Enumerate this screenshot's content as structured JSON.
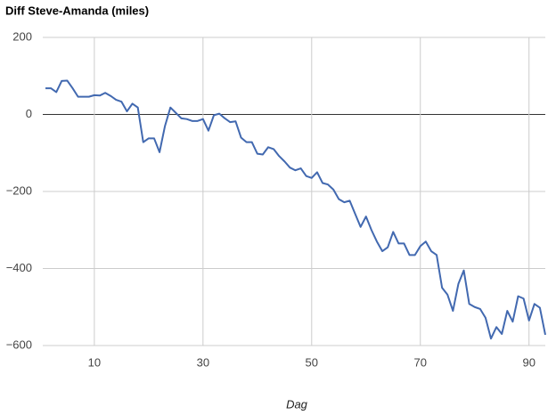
{
  "chart_data": {
    "type": "line",
    "title": "Diff Steve-Amanda (miles)",
    "x_label": "Dag",
    "x": [
      1,
      2,
      3,
      4,
      5,
      6,
      7,
      8,
      9,
      10,
      11,
      12,
      13,
      14,
      15,
      16,
      17,
      18,
      19,
      20,
      21,
      22,
      23,
      24,
      25,
      26,
      27,
      28,
      29,
      30,
      31,
      32,
      33,
      34,
      35,
      36,
      37,
      38,
      39,
      40,
      41,
      42,
      43,
      44,
      45,
      46,
      47,
      48,
      49,
      50,
      51,
      52,
      53,
      54,
      55,
      56,
      57,
      58,
      59,
      60,
      61,
      62,
      63,
      64,
      65,
      66,
      67,
      68,
      69,
      70,
      71,
      72,
      73,
      74,
      75,
      76,
      77,
      78,
      79,
      80,
      81,
      82,
      83,
      84,
      85,
      86,
      87,
      88,
      89,
      90,
      91,
      92,
      93
    ],
    "series": [
      {
        "name": "Diff",
        "color": "#4269b0",
        "values": [
          68,
          68,
          58,
          87,
          88,
          68,
          46,
          46,
          46,
          50,
          49,
          56,
          48,
          38,
          33,
          8,
          28,
          18,
          -72,
          -62,
          -62,
          -98,
          -30,
          18,
          4,
          -10,
          -12,
          -17,
          -17,
          -12,
          -42,
          -2,
          2,
          -10,
          -20,
          -18,
          -60,
          -72,
          -72,
          -102,
          -104,
          -85,
          -90,
          -108,
          -122,
          -138,
          -145,
          -140,
          -160,
          -165,
          -150,
          -178,
          -182,
          -195,
          -220,
          -228,
          -224,
          -258,
          -292,
          -265,
          -300,
          -330,
          -355,
          -345,
          -305,
          -335,
          -335,
          -365,
          -365,
          -342,
          -330,
          -355,
          -365,
          -450,
          -468,
          -510,
          -440,
          -405,
          -492,
          -500,
          -505,
          -528,
          -582,
          -552,
          -570,
          -510,
          -538,
          -472,
          -478,
          -535,
          -492,
          -502,
          -572
        ]
      }
    ],
    "xlim": [
      1,
      93
    ],
    "xticks": [
      10,
      30,
      50,
      70,
      90
    ],
    "ylim": [
      -600,
      200
    ],
    "yticks": [
      {
        "value": -600,
        "label": "−600"
      },
      {
        "value": -400,
        "label": "−400"
      },
      {
        "value": -200,
        "label": "−200"
      },
      0,
      200
    ],
    "grid": true
  }
}
